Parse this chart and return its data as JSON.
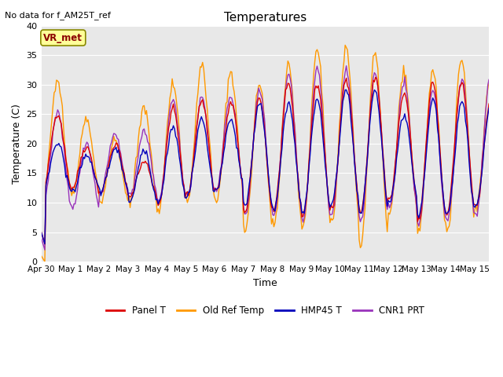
{
  "title": "Temperatures",
  "xlabel": "Time",
  "ylabel": "Temperature (C)",
  "ylim": [
    0,
    40
  ],
  "no_data_text": "No data for f_AM25T_ref",
  "annotation_text": "VR_met",
  "plot_bg_color": "#e8e8e8",
  "fig_bg_color": "#ffffff",
  "colors": {
    "panel_t": "#dd0000",
    "old_ref": "#ff9900",
    "hmp45": "#0000bb",
    "cnr1": "#9933bb"
  },
  "legend_labels": [
    "Panel T",
    "Old Ref Temp",
    "HMP45 T",
    "CNR1 PRT"
  ],
  "xtick_labels": [
    "Apr 30",
    "May 1",
    "May 2",
    "May 3",
    "May 4",
    "May 5",
    "May 6",
    "May 7",
    "May 8",
    "May 9",
    "May 10",
    "May 11",
    "May 12",
    "May 13",
    "May 14",
    "May 15"
  ],
  "ytick_values": [
    0,
    5,
    10,
    15,
    20,
    25,
    30,
    35,
    40
  ],
  "line_width": 1.0
}
